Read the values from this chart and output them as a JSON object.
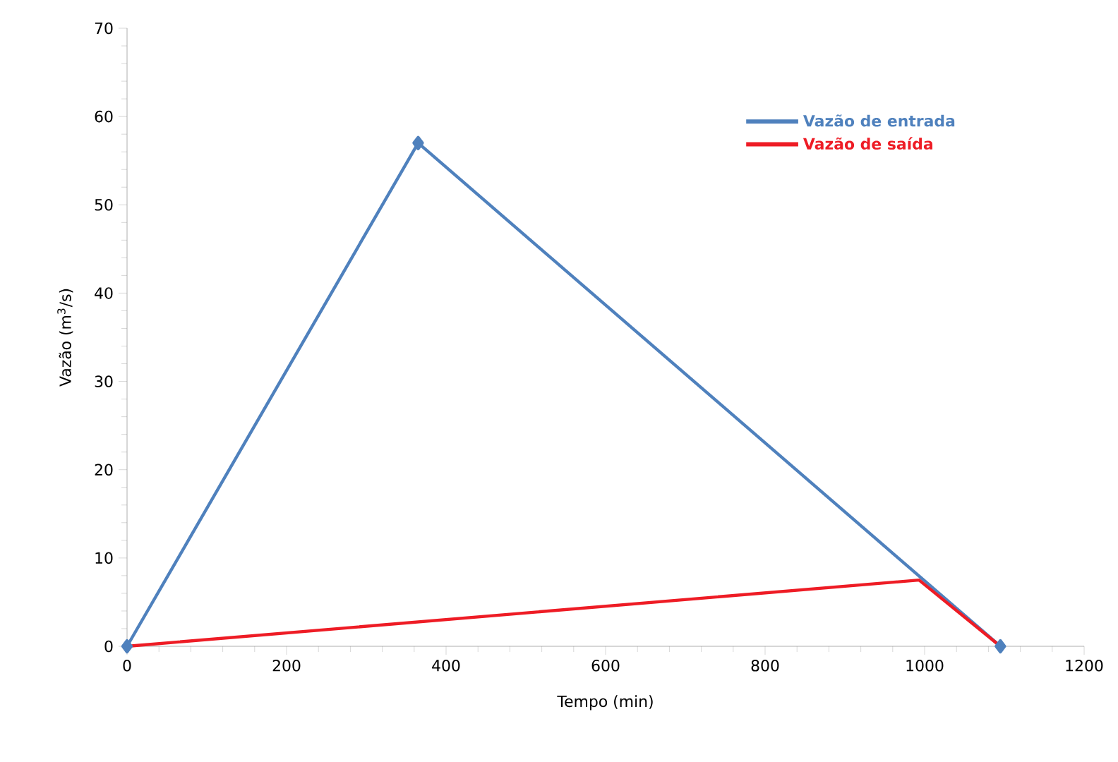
{
  "chart_data": {
    "type": "line",
    "xlabel": "Tempo (min)",
    "ylabel": "Vazão (m$^{3}$/s)",
    "xlim": [
      0,
      1200
    ],
    "xticks": [
      0,
      200,
      400,
      600,
      800,
      1000,
      1200
    ],
    "ylim": [
      0,
      70
    ],
    "yticks": [
      0,
      10,
      20,
      30,
      40,
      50,
      60,
      70
    ],
    "grid": false,
    "legend": "top right",
    "line_style": "solid",
    "series": [
      {
        "name": "Vazão de entrada",
        "color": "#4f81bd",
        "marker": "diamond",
        "x": [
          0,
          365,
          1095
        ],
        "values": [
          0,
          57,
          0
        ]
      },
      {
        "name": "Vazão de saída",
        "color": "#ee1c25",
        "marker": "none",
        "x": [
          0,
          993,
          1095
        ],
        "values": [
          0,
          7.5,
          0
        ]
      }
    ]
  }
}
